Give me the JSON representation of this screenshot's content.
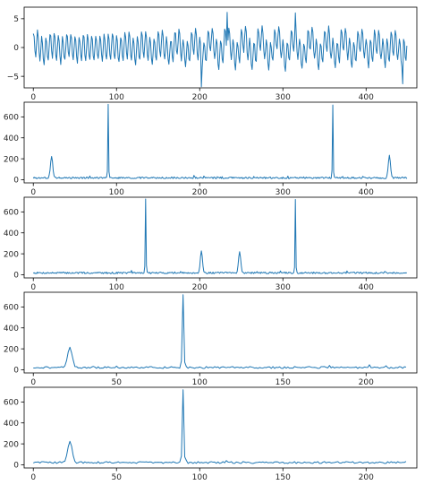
{
  "colors": {
    "series": "#1f77b4",
    "axis": "#000000",
    "background": "#ffffff"
  },
  "chart_data": [
    {
      "type": "line",
      "title": "",
      "xlabel": "",
      "ylabel": "",
      "xlim": [
        -11,
        461
      ],
      "ylim": [
        -7,
        7
      ],
      "xticks": [
        0,
        100,
        200,
        300,
        400
      ],
      "yticks": [
        -5,
        0,
        5
      ],
      "grid": false,
      "legend": "none",
      "series": [
        {
          "kind": "waveform",
          "n": 450,
          "seed": 11,
          "components": [
            [
              0.85,
              23,
              0
            ],
            [
              2.3,
              90,
              0.7
            ],
            [
              2.3,
              360,
              1.4
            ],
            [
              0.85,
              428,
              2.1
            ]
          ],
          "noise": 0.3,
          "extrema": [
            [
              202,
              -6.8
            ],
            [
              233,
              6.1
            ],
            [
              315,
              6.0
            ],
            [
              444,
              -6.3
            ]
          ]
        }
      ]
    },
    {
      "type": "line",
      "title": "",
      "xlabel": "",
      "ylabel": "",
      "xlim": [
        -11,
        461
      ],
      "ylim": [
        -30,
        740
      ],
      "xticks": [
        0,
        100,
        200,
        300,
        400
      ],
      "yticks": [
        0,
        200,
        400,
        600
      ],
      "grid": false,
      "legend": "none",
      "series": [
        {
          "kind": "spectrum",
          "n": 450,
          "seed": 3,
          "baseline": 18,
          "noise": 8,
          "peaks": [
            [
              22,
              210,
              1.3
            ],
            [
              90,
              700,
              0.45
            ],
            [
              360,
              700,
              0.45
            ],
            [
              428,
              210,
              1.3
            ]
          ]
        }
      ]
    },
    {
      "type": "line",
      "title": "",
      "xlabel": "",
      "ylabel": "",
      "xlim": [
        -11,
        461
      ],
      "ylim": [
        -30,
        740
      ],
      "xticks": [
        0,
        100,
        200,
        300,
        400
      ],
      "yticks": [
        0,
        200,
        400,
        600
      ],
      "grid": false,
      "legend": "none",
      "series": [
        {
          "kind": "spectrum",
          "n": 450,
          "seed": 7,
          "baseline": 18,
          "noise": 8,
          "peaks": [
            [
              135,
              700,
              0.45
            ],
            [
              202,
              210,
              1.3
            ],
            [
              248,
              210,
              1.3
            ],
            [
              315,
              700,
              0.45
            ]
          ]
        }
      ]
    },
    {
      "type": "line",
      "title": "",
      "xlabel": "",
      "ylabel": "",
      "xlim": [
        -5.5,
        230.5
      ],
      "ylim": [
        -30,
        740
      ],
      "xticks": [
        0,
        50,
        100,
        150,
        200
      ],
      "yticks": [
        0,
        200,
        400,
        600
      ],
      "grid": false,
      "legend": "none",
      "series": [
        {
          "kind": "spectrum",
          "n": 225,
          "seed": 21,
          "baseline": 22,
          "noise": 9,
          "peaks": [
            [
              22,
              200,
              1.3
            ],
            [
              90,
              700,
              0.45
            ]
          ]
        }
      ]
    },
    {
      "type": "line",
      "title": "",
      "xlabel": "",
      "ylabel": "",
      "xlim": [
        -5.5,
        230.5
      ],
      "ylim": [
        -30,
        740
      ],
      "xticks": [
        0,
        50,
        100,
        150,
        200
      ],
      "yticks": [
        0,
        200,
        400,
        600
      ],
      "grid": false,
      "legend": "none",
      "series": [
        {
          "kind": "spectrum",
          "n": 225,
          "seed": 29,
          "baseline": 22,
          "noise": 9,
          "peaks": [
            [
              22,
              200,
              1.3
            ],
            [
              90,
              700,
              0.45
            ]
          ]
        }
      ]
    }
  ]
}
